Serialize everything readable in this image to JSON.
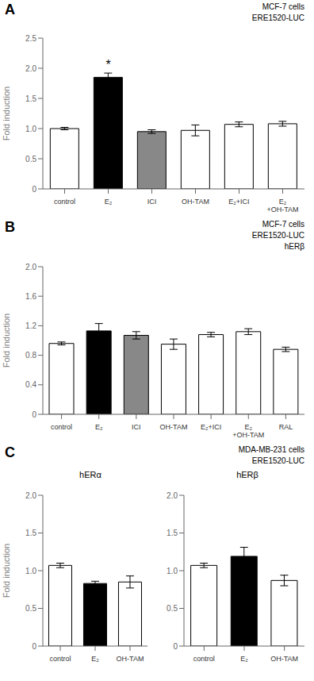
{
  "chart_data": [
    {
      "type": "bar",
      "title": "MCF-7 cells\nERE1520-LUC",
      "ylabel": "Fold induction",
      "ylim": [
        0,
        2.5
      ],
      "yticks": [
        0,
        0.5,
        {
          "value": 1,
          "label": "1.0"
        },
        1.5,
        {
          "value": 2,
          "label": "2.0"
        },
        2.5
      ],
      "categories": [
        "control",
        "E₂",
        "ICI",
        "OH-TAM",
        "E₂+ICI",
        "E₂\n+OH-TAM"
      ],
      "values": [
        1.0,
        1.85,
        0.95,
        0.97,
        1.07,
        1.08
      ],
      "errors": [
        0.02,
        0.07,
        0.03,
        0.09,
        0.04,
        0.04
      ],
      "colors": [
        "white",
        "black",
        "#888888",
        "white",
        "white",
        "white"
      ],
      "annotations": [
        {
          "text": "A"
        },
        {
          "text": "*",
          "category": "E₂"
        }
      ]
    },
    {
      "type": "bar",
      "title": "MCF-7 cells\nERE1520-LUC\nhERβ",
      "ylabel": "Fold induction",
      "ylim": [
        0,
        2.0
      ],
      "yticks": [
        0,
        0.4,
        0.8,
        1.2,
        1.6,
        {
          "value": 2,
          "label": "2.0"
        }
      ],
      "categories": [
        "control",
        "E₂",
        "ICI",
        "OH-TAM",
        "E₂+ICI",
        "E₂\n+OH-TAM",
        "RAL"
      ],
      "values": [
        0.96,
        1.13,
        1.07,
        0.95,
        1.08,
        1.12,
        0.88
      ],
      "errors": [
        0.02,
        0.1,
        0.05,
        0.07,
        0.03,
        0.04,
        0.03
      ],
      "colors": [
        "white",
        "black",
        "#888888",
        "white",
        "white",
        "white",
        "white"
      ],
      "annotations": [
        {
          "text": "B"
        }
      ]
    },
    {
      "type": "bar",
      "subtitle": "hERα",
      "ylabel": "Fold induction",
      "ylim": [
        0,
        2.0
      ],
      "yticks": [
        0,
        0.5,
        {
          "value": 1,
          "label": "1.0"
        },
        1.5,
        {
          "value": 2,
          "label": "2.0"
        }
      ],
      "categories": [
        "control",
        "E₂",
        "OH-TAM"
      ],
      "values": [
        1.07,
        0.83,
        0.85
      ],
      "errors": [
        0.03,
        0.03,
        0.08
      ],
      "colors": [
        "white",
        "black",
        "white"
      ],
      "annotations": [
        {
          "text": "C"
        }
      ]
    },
    {
      "type": "bar",
      "subtitle": "hERβ",
      "title": "MDA-MB-231 cells\nERE1520-LUC",
      "ylim": [
        0,
        2.0
      ],
      "yticks": [
        0,
        0.5,
        {
          "value": 1,
          "label": "1.0"
        },
        1.5,
        {
          "value": 2,
          "label": "2.0"
        }
      ],
      "categories": [
        "control",
        "E₂",
        "OH-TAM"
      ],
      "values": [
        1.07,
        1.19,
        0.87
      ],
      "errors": [
        0.03,
        0.12,
        0.07
      ],
      "colors": [
        "white",
        "black",
        "white"
      ]
    }
  ]
}
